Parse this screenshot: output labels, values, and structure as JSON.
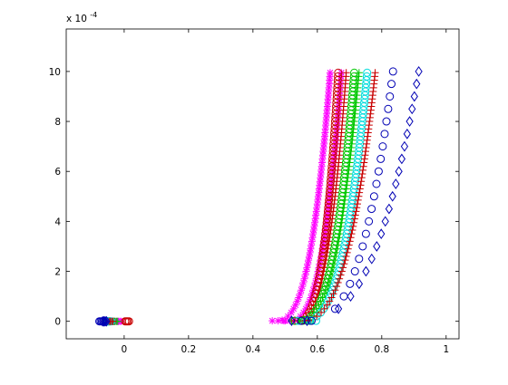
{
  "chart_data": {
    "type": "scatter",
    "title": "",
    "xlabel": "",
    "ylabel": "",
    "xlim": [
      -0.18,
      1.04
    ],
    "ylim": [
      -0.7,
      11.7
    ],
    "y_exponent_label": "x 10",
    "y_exponent_power": "-4",
    "x_ticks": [
      0,
      0.2,
      0.4,
      0.6,
      0.8,
      1
    ],
    "x_tick_labels": [
      "0",
      "0.2",
      "0.4",
      "0.6",
      "0.8",
      "1"
    ],
    "y_ticks": [
      0,
      2,
      4,
      6,
      8,
      10
    ],
    "y_tick_labels": [
      "0",
      "2",
      "4",
      "6",
      "8",
      "10"
    ],
    "grid": false,
    "marker_colors": {
      "blue": "#0000b4",
      "red": "#c80000",
      "green": "#00c800",
      "cyan": "#00dcdc",
      "magenta": "#ff00ff"
    },
    "series": [
      {
        "color": "#0000b4",
        "marker": "diamond",
        "start": -0.055,
        "x_low": 0.52,
        "x_top": 0.915,
        "dx": 0.048
      },
      {
        "color": "#0000b4",
        "marker": "circle",
        "start": -0.065,
        "x_low": 0.55,
        "x_top": 0.835,
        "dx": 0.032
      },
      {
        "color": "#c80000",
        "marker": "circle",
        "start": 0.015,
        "x_low": 0.53,
        "x_top": 0.665,
        "dx": 0.02
      },
      {
        "color": "#00c800",
        "marker": "circle",
        "start": -0.045,
        "x_low": 0.53,
        "x_top": 0.715,
        "dx": 0.024
      },
      {
        "color": "#00dcdc",
        "marker": "circle",
        "start": -0.04,
        "x_low": 0.54,
        "x_top": 0.755,
        "dx": 0.028
      },
      {
        "color": "#c80000",
        "marker": "plus",
        "start": -0.03,
        "x_low": 0.52,
        "x_top": 0.69,
        "dx": 0.022
      },
      {
        "color": "#00c800",
        "marker": "plus",
        "start": -0.02,
        "x_low": 0.52,
        "x_top": 0.73,
        "dx": 0.026
      },
      {
        "color": "#c80000",
        "marker": "plus",
        "start": -0.035,
        "x_low": 0.53,
        "x_top": 0.78,
        "dx": 0.03
      },
      {
        "color": "#ff00ff",
        "marker": "star",
        "start": -0.01,
        "x_low": 0.46,
        "x_top": 0.64,
        "dx": 0.018
      },
      {
        "color": "#ff00ff",
        "marker": "star",
        "start": -0.05,
        "x_low": 0.5,
        "x_top": 0.675,
        "dx": 0.022
      }
    ]
  }
}
